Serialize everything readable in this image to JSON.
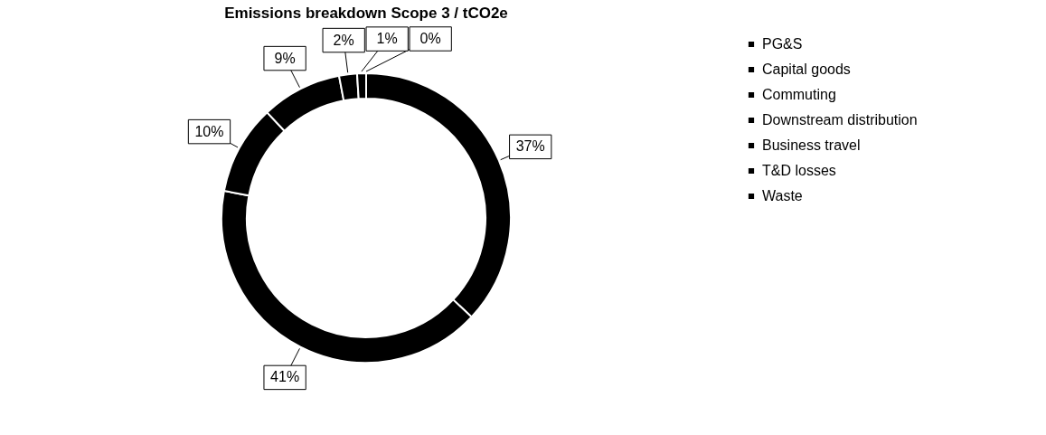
{
  "chart_data": {
    "type": "donut",
    "title": "Emissions breakdown Scope 3 / tCO2e",
    "categories": [
      "PG&S",
      "Capital goods",
      "Commuting",
      "Downstream distribution",
      "Business travel",
      "T&D losses",
      "Waste"
    ],
    "values": [
      37,
      41,
      10,
      9,
      2,
      1,
      0
    ],
    "colors": [
      "#000000",
      "#000000",
      "#000000",
      "#000000",
      "#000000",
      "#000000",
      "#000000"
    ],
    "value_labels": [
      "37%",
      "41%",
      "10%",
      "9%",
      "2%",
      "1%",
      "0%"
    ],
    "legend": "right"
  }
}
